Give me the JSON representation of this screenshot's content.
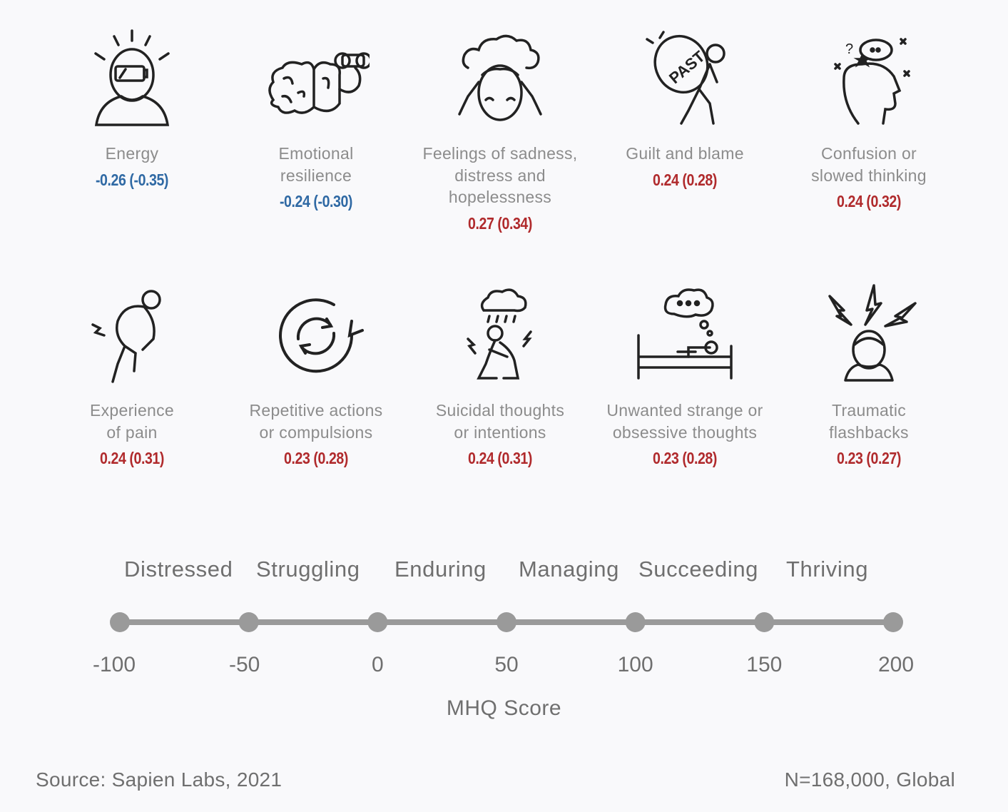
{
  "symptoms_row1": [
    {
      "label": "Energy",
      "value": "-0.26 (-0.35)",
      "sign": "neg",
      "icon": "low-battery-head-icon"
    },
    {
      "label": "Emotional\nresilience",
      "value": "-0.24 (-0.30)",
      "sign": "neg",
      "icon": "brain-muscle-icon"
    },
    {
      "label": "Feelings of sadness,\ndistress and\nhopelessness",
      "value": "0.27 (0.34)",
      "sign": "pos",
      "icon": "head-clouds-icon"
    },
    {
      "label": "Guilt and blame",
      "value": "0.24 (0.28)",
      "sign": "pos",
      "icon": "past-burden-icon"
    },
    {
      "label": "Confusion or\nslowed thinking",
      "value": "0.24 (0.32)",
      "sign": "pos",
      "icon": "confused-head-icon"
    }
  ],
  "symptoms_row2": [
    {
      "label": "Experience\nof pain",
      "value": "0.24 (0.31)",
      "sign": "pos",
      "icon": "back-pain-icon"
    },
    {
      "label": "Repetitive actions\nor compulsions",
      "value": "0.23 (0.28)",
      "sign": "pos",
      "icon": "cycle-arrows-icon"
    },
    {
      "label": "Suicidal thoughts\nor intentions",
      "value": "0.24 (0.31)",
      "sign": "pos",
      "icon": "storm-person-icon"
    },
    {
      "label": "Unwanted strange or\nobsessive thoughts",
      "value": "0.23 (0.28)",
      "sign": "pos",
      "icon": "bed-thought-icon"
    },
    {
      "label": "Traumatic\nflashbacks",
      "value": "0.23 (0.27)",
      "sign": "pos",
      "icon": "lightning-head-icon"
    }
  ],
  "scale": {
    "categories": [
      "Distressed",
      "Struggling",
      "Enduring",
      "Managing",
      "Succeeding",
      "Thriving"
    ],
    "ticks": [
      "-100",
      "-50",
      "0",
      "50",
      "100",
      "150",
      "200"
    ],
    "tick_values": [
      -100,
      -50,
      0,
      50,
      100,
      150,
      200
    ],
    "title": "MHQ Score"
  },
  "colors": {
    "negative": "#2f69a4",
    "positive": "#b02a2c",
    "axis": "#9a9a9a",
    "label": "#8c8c8c"
  },
  "footer": {
    "source": "Source: Sapien Labs, 2021",
    "sample": "N=168,000, Global"
  }
}
